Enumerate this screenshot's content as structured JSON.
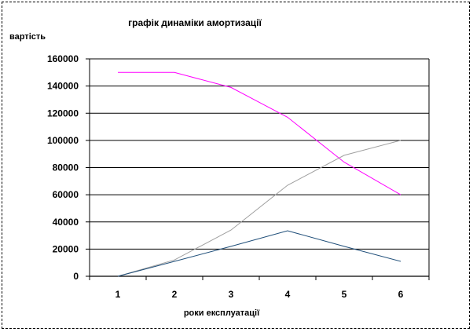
{
  "chart_data": {
    "type": "line",
    "title": "графік динаміки амортизації",
    "ylabel": "вартість",
    "xlabel": "роки експлуатації",
    "categories": [
      "1",
      "2",
      "3",
      "4",
      "5",
      "6"
    ],
    "ylim": [
      0,
      160000
    ],
    "yticks": [
      0,
      20000,
      40000,
      60000,
      80000,
      100000,
      120000,
      140000,
      160000
    ],
    "grid": true,
    "legend": "none",
    "series": [
      {
        "color": "#ff00ff",
        "values": [
          150000,
          150000,
          139000,
          117000,
          84000,
          60000
        ]
      },
      {
        "color": "#a0a0a0",
        "values": [
          0,
          12000,
          34000,
          67000,
          89000,
          100000
        ]
      },
      {
        "color": "#1f4e79",
        "values": [
          0,
          11000,
          22000,
          33500,
          22000,
          11000
        ]
      }
    ]
  }
}
